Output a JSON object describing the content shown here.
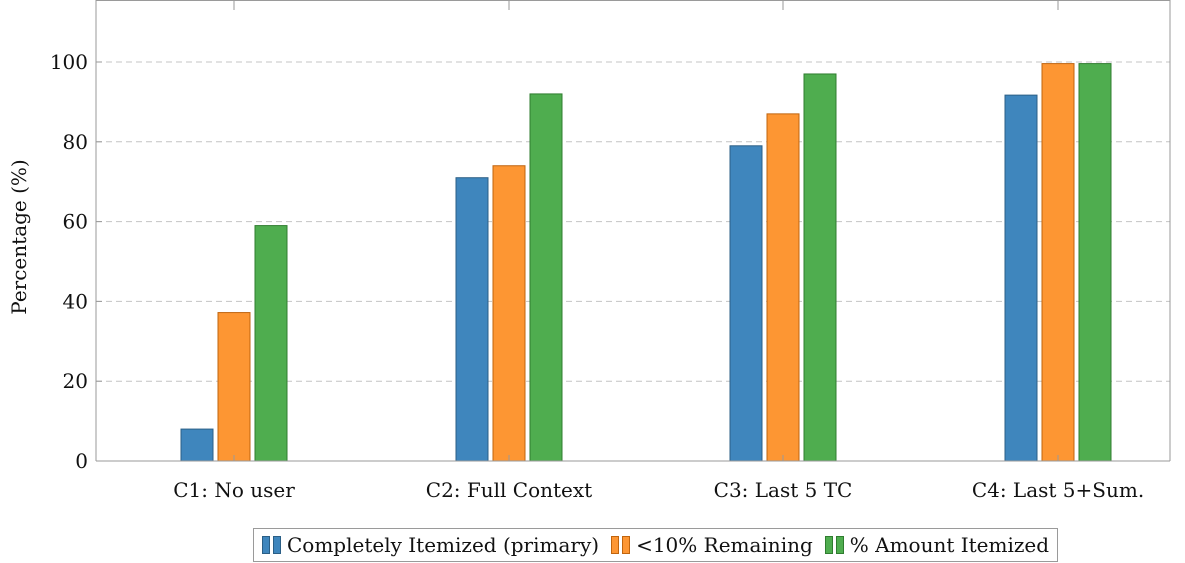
{
  "chart_data": {
    "type": "bar",
    "categories": [
      "C1: No user",
      "C2: Full Context",
      "C3: Last 5 TC",
      "C4: Last 5+Sum."
    ],
    "series": [
      {
        "name": "Completely Itemized (primary)",
        "values": [
          8,
          71,
          79,
          91.7
        ],
        "color": "#3f86bd",
        "edge": "#2b5f86"
      },
      {
        "name": "<10% Remaining",
        "values": [
          37.2,
          74,
          87,
          99.6
        ],
        "color": "#fd9633",
        "edge": "#c0640e"
      },
      {
        "name": "% Amount Itemized",
        "values": [
          59,
          92,
          97,
          99.6
        ],
        "color": "#4fad4f",
        "edge": "#2f7d2f"
      }
    ],
    "ylabel": "Percentage (%)",
    "xlabel": "",
    "title": "",
    "ylim": [
      0,
      112
    ],
    "yticks": [
      0,
      20,
      40,
      60,
      80,
      100
    ],
    "grid": "horizontal-dashed",
    "legend_placement": "bottom-center"
  }
}
